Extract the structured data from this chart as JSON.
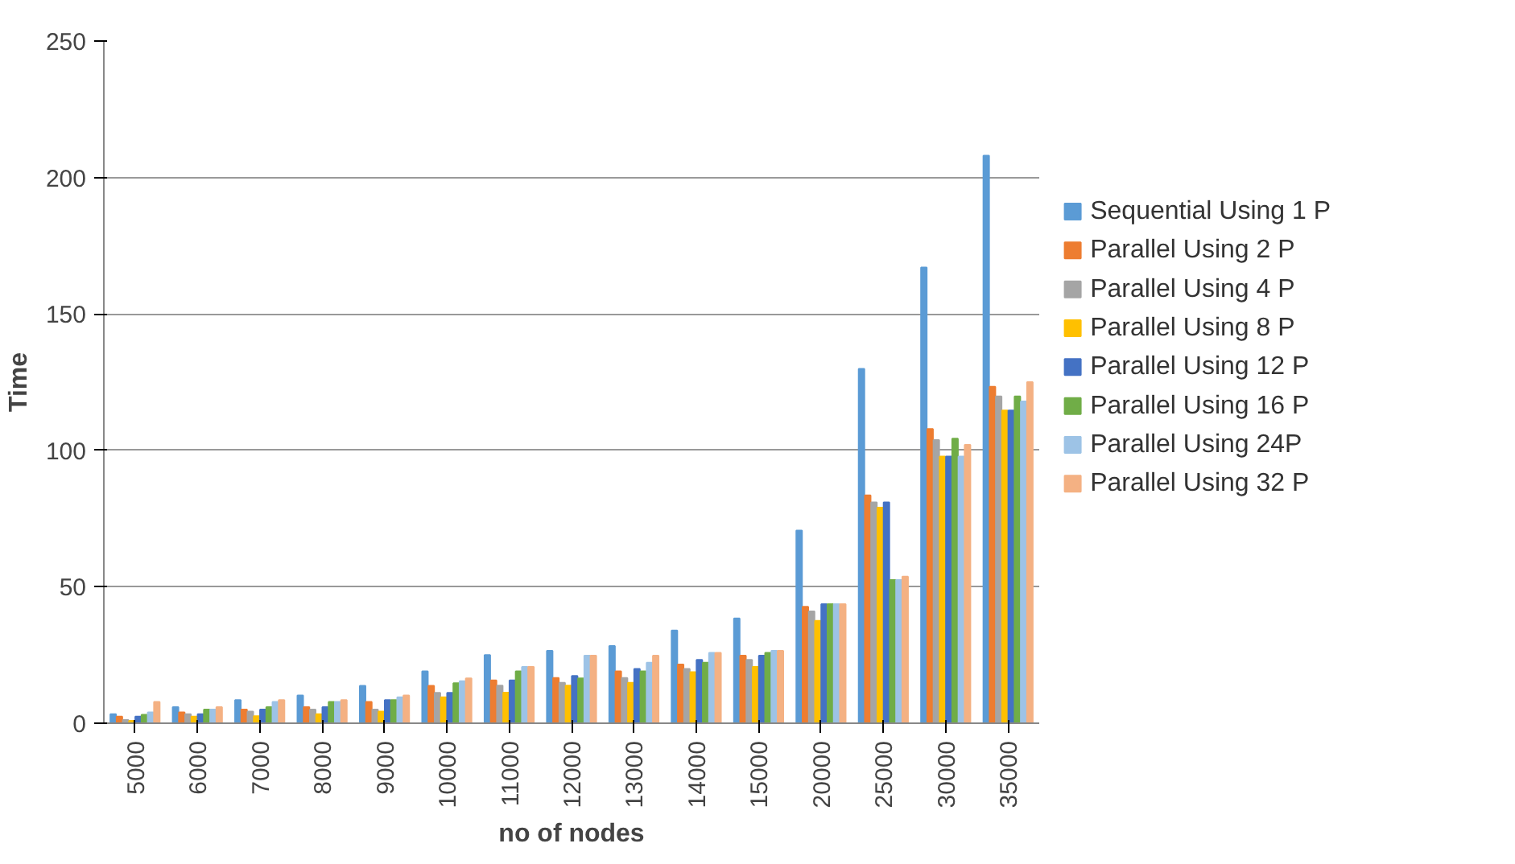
{
  "chart_data": {
    "type": "bar",
    "xlabel": "no of nodes",
    "ylabel": "Time",
    "categories": [
      "5000",
      "6000",
      "7000",
      "8000",
      "9000",
      "10000",
      "11000",
      "12000",
      "13000",
      "14000",
      "15000",
      "20000",
      "25000",
      "30000",
      "35000"
    ],
    "ylim": [
      0,
      250
    ],
    "yticks": [
      0,
      50,
      100,
      150,
      200,
      250
    ],
    "grid": "y",
    "legend": "right",
    "series": [
      {
        "name": "Sequential Using 1 P",
        "color": "#5b9bd5",
        "values": [
          3.3,
          5.9,
          8.5,
          10.2,
          13.7,
          19,
          25,
          26.5,
          28.3,
          34,
          38.4,
          70.6,
          129.9,
          167,
          208
        ]
      },
      {
        "name": "Parallel Using 2 P",
        "color": "#ed7d31",
        "values": [
          2.4,
          4,
          5,
          5.9,
          7.8,
          13.7,
          15.7,
          16.6,
          19,
          21.5,
          24.8,
          42.7,
          83.5,
          107.8,
          123.3
        ]
      },
      {
        "name": "Parallel Using 4 P",
        "color": "#a5a5a5",
        "values": [
          1.2,
          3.3,
          4.3,
          5,
          5,
          11.1,
          13.8,
          14.8,
          16.6,
          19.9,
          23.2,
          41,
          80.9,
          103.8,
          119.8
        ]
      },
      {
        "name": "Parallel Using 8 P",
        "color": "#ffc000",
        "values": [
          0.9,
          2.4,
          2.6,
          3.3,
          4.3,
          9.5,
          11.2,
          13.8,
          14.8,
          18.7,
          20.6,
          37.5,
          79,
          97.7,
          114.6
        ]
      },
      {
        "name": "Parallel Using 12 P",
        "color": "#4472c4",
        "values": [
          2.4,
          3.3,
          5,
          5.9,
          8.5,
          11.1,
          15.7,
          17.3,
          19.9,
          23.2,
          24.8,
          43.6,
          80.9,
          97.7,
          114.6
        ]
      },
      {
        "name": "Parallel Using 16 P",
        "color": "#70ad47",
        "values": [
          3.1,
          5,
          5.9,
          7.8,
          8.5,
          14.7,
          19,
          16.4,
          19,
          22.2,
          25.8,
          43.6,
          52.5,
          104.3,
          119.8
        ]
      },
      {
        "name": "Parallel Using 24P",
        "color": "#9dc3e6",
        "values": [
          4,
          5,
          7.8,
          7.8,
          9.5,
          15.4,
          20.6,
          24.8,
          22.2,
          25.8,
          26.5,
          43.6,
          52.5,
          97.7,
          117.9
        ]
      },
      {
        "name": "Parallel Using 32 P",
        "color": "#f4b183",
        "values": [
          7.8,
          5.9,
          8.5,
          8.5,
          10.2,
          16.4,
          20.6,
          24.8,
          24.8,
          25.8,
          26.5,
          43.6,
          53.7,
          102,
          125
        ]
      }
    ]
  }
}
